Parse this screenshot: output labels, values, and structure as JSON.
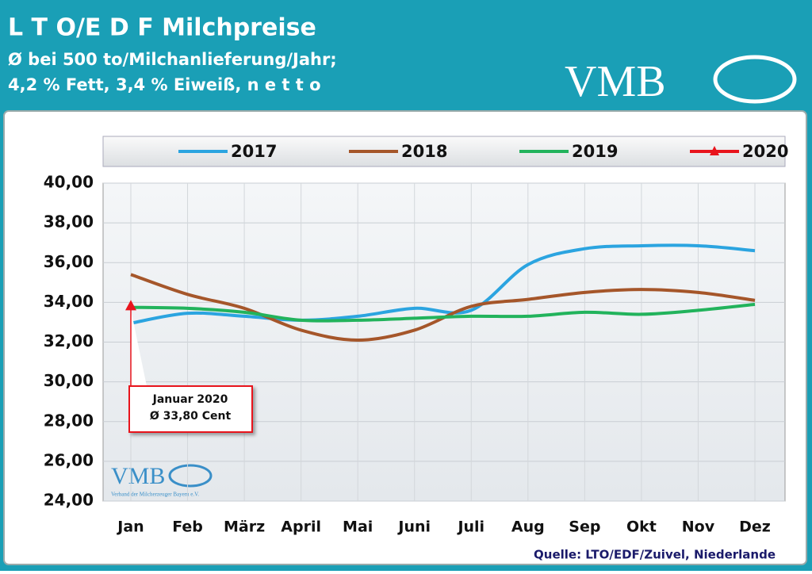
{
  "chart_data": {
    "type": "line",
    "title": "L T O/E D F Milchpreise",
    "subtitle_lines": [
      "Ø bei 500 to/Milchanlieferung/Jahr;",
      "4,2 % Fett, 3,4 % Eiweiß, n e t t o"
    ],
    "logo": "VMB",
    "watermark": "VMB",
    "watermark_subtitle": "Verband der Milcherzeuger Bayern e.V.",
    "source": "Quelle: LTO/EDF/Zuivel, Niederlande",
    "annotations": [
      "Januar 2020",
      "Ø 33,80 Cent"
    ],
    "categories": [
      "Jan",
      "Feb",
      "März",
      "April",
      "Mai",
      "Juni",
      "Juli",
      "Aug",
      "Sep",
      "Okt",
      "Nov",
      "Dez"
    ],
    "series": [
      {
        "name": "2017",
        "color": "#2ba4e0",
        "values": [
          32.95,
          33.45,
          33.3,
          33.1,
          33.3,
          33.7,
          33.6,
          35.9,
          36.7,
          36.85,
          36.85,
          36.6
        ]
      },
      {
        "name": "2018",
        "color": "#a5562a",
        "values": [
          35.4,
          34.4,
          33.7,
          32.6,
          32.1,
          32.6,
          33.8,
          34.15,
          34.5,
          34.65,
          34.5,
          34.1
        ]
      },
      {
        "name": "2019",
        "color": "#22b35c",
        "values": [
          33.75,
          33.7,
          33.5,
          33.1,
          33.1,
          33.2,
          33.3,
          33.3,
          33.5,
          33.4,
          33.6,
          33.9
        ]
      },
      {
        "name": "2020",
        "color": "#e8141c",
        "marker": "triangle",
        "values": [
          33.8,
          null,
          null,
          null,
          null,
          null,
          null,
          null,
          null,
          null,
          null,
          null
        ]
      }
    ],
    "ylim": [
      24,
      40
    ],
    "yticks": [
      {
        "value": 24,
        "label": "24,00"
      },
      {
        "value": 26,
        "label": "26,00"
      },
      {
        "value": 28,
        "label": "28,00"
      },
      {
        "value": 30,
        "label": "30,00"
      },
      {
        "value": 32,
        "label": "32,00"
      },
      {
        "value": 34,
        "label": "34,00"
      },
      {
        "value": 36,
        "label": "36,00"
      },
      {
        "value": 38,
        "label": "38,00"
      },
      {
        "value": 40,
        "label": "40,00"
      }
    ],
    "grid": true,
    "legend": "top"
  }
}
